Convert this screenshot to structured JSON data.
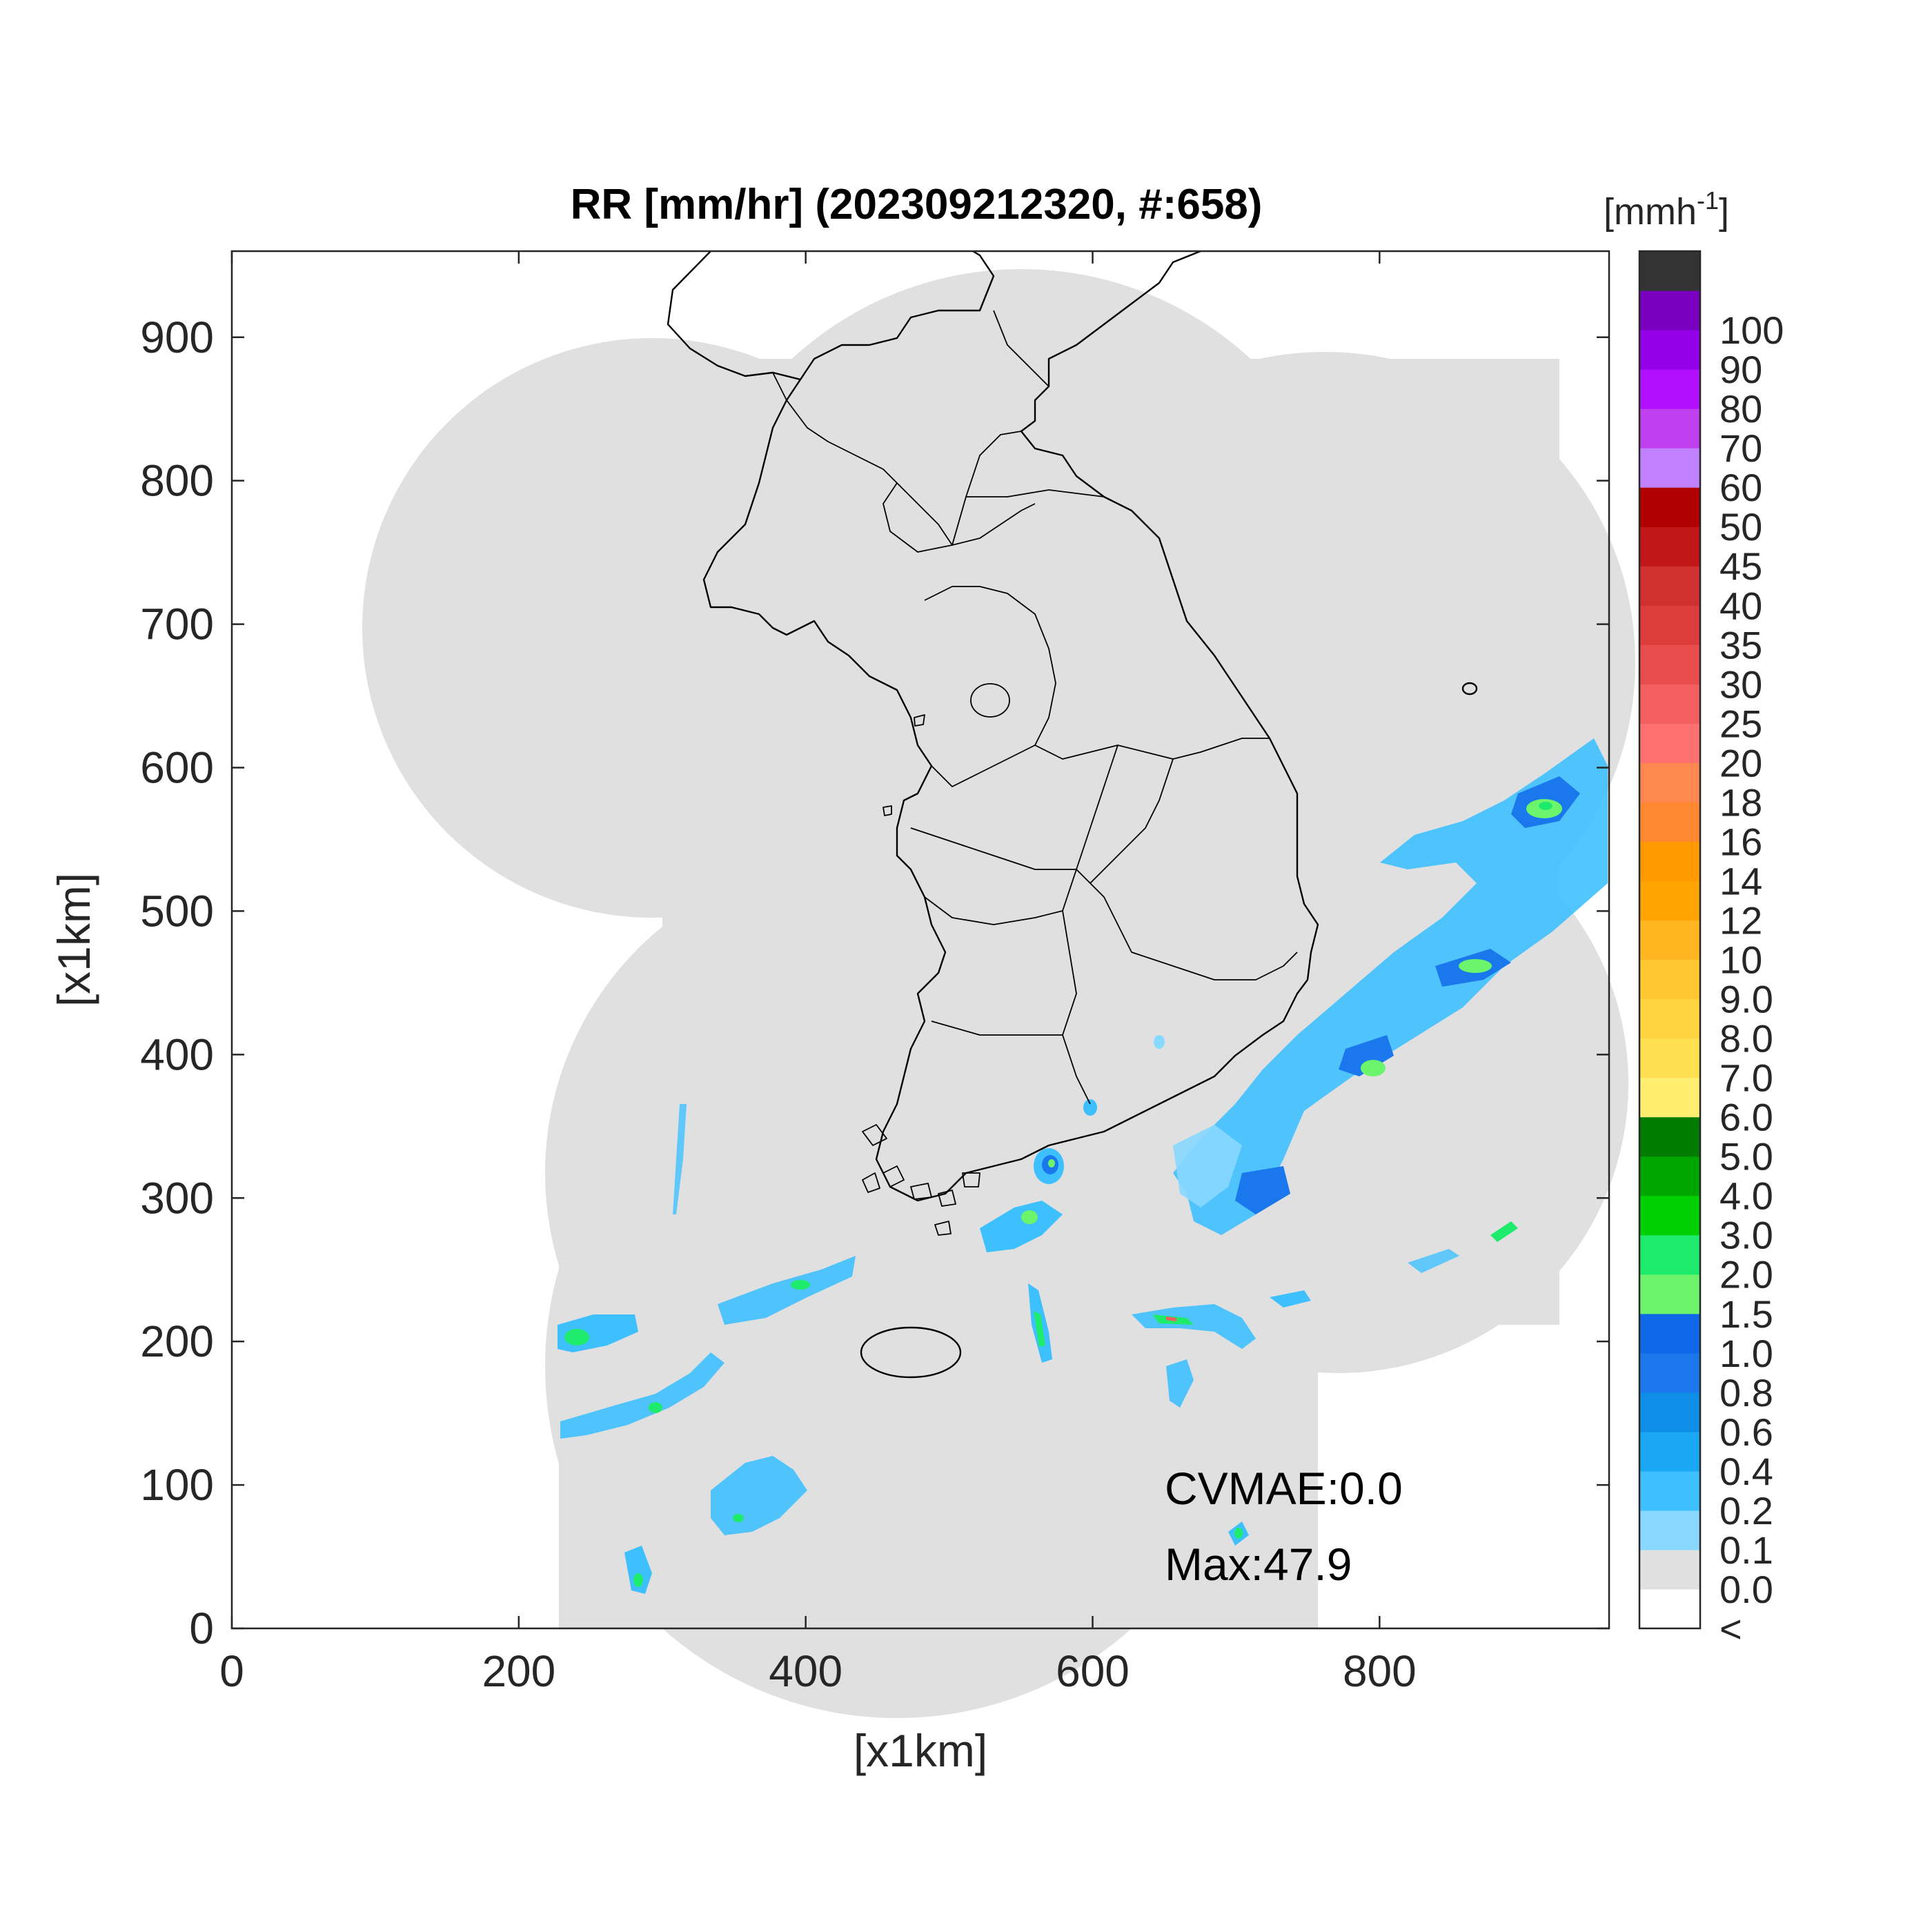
{
  "title": "RR [mm/hr] (202309212320, #:658)",
  "xlabel": "[x1km]",
  "ylabel": "[x1km]",
  "x_ticks": [
    "0",
    "200",
    "400",
    "600",
    "800"
  ],
  "y_ticks": [
    "0",
    "100",
    "200",
    "300",
    "400",
    "500",
    "600",
    "700",
    "800",
    "900"
  ],
  "xlim": [
    0,
    960
  ],
  "ylim": [
    0,
    960
  ],
  "colorbar": {
    "unit_base": "[mmh",
    "unit_exp": "-1",
    "unit_close": "]",
    "labels": [
      "<",
      "0.0",
      "0.1",
      "0.2",
      "0.4",
      "0.6",
      "0.8",
      "1.0",
      "1.5",
      "2.0",
      "3.0",
      "4.0",
      "5.0",
      "6.0",
      "7.0",
      "8.0",
      "9.0",
      "10",
      "12",
      "14",
      "16",
      "18",
      "20",
      "25",
      "30",
      "35",
      "40",
      "45",
      "50",
      "60",
      "70",
      "80",
      "90",
      "100"
    ],
    "colors": [
      "#ffffff",
      "#e0e0e0",
      "#88d8ff",
      "#3ec0ff",
      "#1aa8f5",
      "#0f8ee8",
      "#1a78ec",
      "#0f68e8",
      "#6cf56c",
      "#1eeb6c",
      "#00d000",
      "#00a600",
      "#007d00",
      "#ffee70",
      "#ffe050",
      "#ffd440",
      "#ffc830",
      "#ffb620",
      "#ffa400",
      "#ff9a00",
      "#ff8830",
      "#ff8850",
      "#ff7070",
      "#f46060",
      "#e84c4c",
      "#dc3c3c",
      "#d03030",
      "#c01818",
      "#b00000",
      "#c080ff",
      "#c040f0",
      "#b010ff",
      "#9400e8",
      "#7a00c0",
      "#333333"
    ]
  },
  "annotations": {
    "cvmae": "CVMAE:0.0",
    "max": "Max:47.9"
  },
  "legend_colors": {
    "radar_coverage": "#e0e0e0",
    "outside": "#ffffff",
    "borders": "#000000"
  }
}
